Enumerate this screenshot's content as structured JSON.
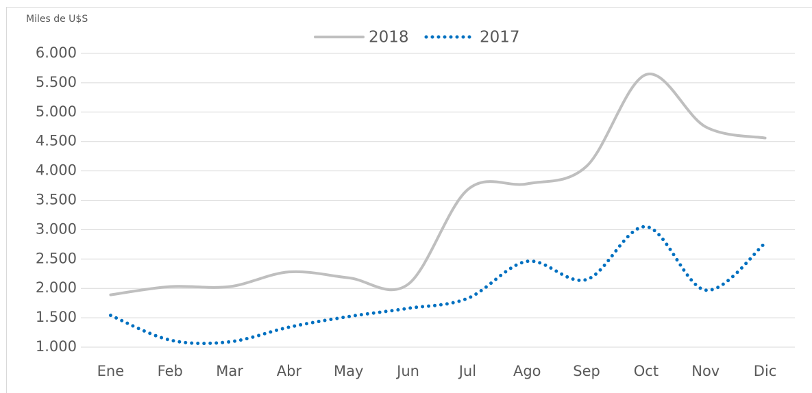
{
  "chart_data": {
    "type": "line",
    "y_label": "Miles de U$S",
    "categories": [
      "Ene",
      "Feb",
      "Mar",
      "Abr",
      "May",
      "Jun",
      "Jul",
      "Ago",
      "Sep",
      "Oct",
      "Nov",
      "Dic"
    ],
    "series": [
      {
        "name": "2018",
        "color": "#bfbfbf",
        "style": "solid",
        "values": [
          1890,
          2030,
          2030,
          2280,
          2180,
          2070,
          3680,
          3780,
          4080,
          5640,
          4750,
          4560
        ]
      },
      {
        "name": "2017",
        "color": "#0070c0",
        "style": "dotted",
        "values": [
          1540,
          1120,
          1090,
          1340,
          1520,
          1660,
          1830,
          2460,
          2150,
          3050,
          1970,
          2770
        ]
      }
    ],
    "ylim": [
      1000,
      6000
    ],
    "yticks": [
      {
        "value": 1000,
        "label": "1.000"
      },
      {
        "value": 1500,
        "label": "1.500"
      },
      {
        "value": 2000,
        "label": "2.000"
      },
      {
        "value": 2500,
        "label": "2.500"
      },
      {
        "value": 3000,
        "label": "3.000"
      },
      {
        "value": 3500,
        "label": "3.500"
      },
      {
        "value": 4000,
        "label": "4.000"
      },
      {
        "value": 4500,
        "label": "4.500"
      },
      {
        "value": 5000,
        "label": "5.000"
      },
      {
        "value": 5500,
        "label": "5.500"
      },
      {
        "value": 6000,
        "label": "6.000"
      }
    ],
    "grid": true,
    "legend": "top",
    "smooth": true
  }
}
